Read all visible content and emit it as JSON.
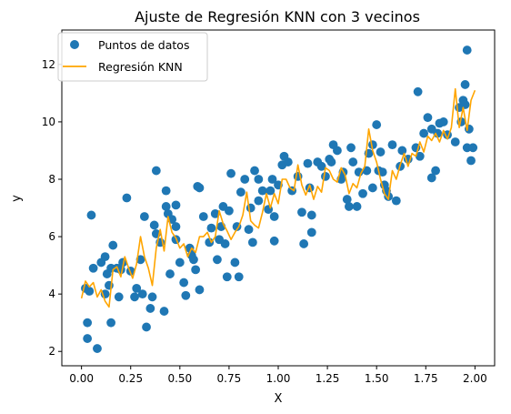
{
  "chart_data": {
    "type": "scatter",
    "title": "Ajuste de Regresión KNN con 3 vecinos",
    "xlabel": "X",
    "ylabel": "y",
    "xlim": [
      -0.1,
      2.1
    ],
    "ylim": [
      1.5,
      13.2
    ],
    "xticks": [
      "0.00",
      "0.25",
      "0.50",
      "0.75",
      "1.00",
      "1.25",
      "1.50",
      "1.75",
      "2.00"
    ],
    "yticks": [
      "2",
      "4",
      "6",
      "8",
      "10",
      "12"
    ],
    "grid": false,
    "legend_position": "top-left",
    "colors": {
      "points": "#1f77b4",
      "line": "#ffa500"
    },
    "series": [
      {
        "name": "Puntos de datos",
        "kind": "scatter",
        "points": [
          [
            0.02,
            4.2
          ],
          [
            0.03,
            3.0
          ],
          [
            0.03,
            2.45
          ],
          [
            0.04,
            4.1
          ],
          [
            0.05,
            6.75
          ],
          [
            0.06,
            4.9
          ],
          [
            0.08,
            2.1
          ],
          [
            0.1,
            5.1
          ],
          [
            0.12,
            4.0
          ],
          [
            0.12,
            5.3
          ],
          [
            0.13,
            4.7
          ],
          [
            0.14,
            4.3
          ],
          [
            0.15,
            4.9
          ],
          [
            0.15,
            3.0
          ],
          [
            0.16,
            5.7
          ],
          [
            0.18,
            4.9
          ],
          [
            0.19,
            3.9
          ],
          [
            0.2,
            4.85
          ],
          [
            0.21,
            5.1
          ],
          [
            0.23,
            7.35
          ],
          [
            0.25,
            4.8
          ],
          [
            0.27,
            3.9
          ],
          [
            0.28,
            4.2
          ],
          [
            0.3,
            5.2
          ],
          [
            0.31,
            4.0
          ],
          [
            0.32,
            6.7
          ],
          [
            0.33,
            2.85
          ],
          [
            0.35,
            3.5
          ],
          [
            0.36,
            3.9
          ],
          [
            0.37,
            6.4
          ],
          [
            0.38,
            8.3
          ],
          [
            0.38,
            6.1
          ],
          [
            0.4,
            5.8
          ],
          [
            0.42,
            3.4
          ],
          [
            0.43,
            7.6
          ],
          [
            0.43,
            7.05
          ],
          [
            0.44,
            6.8
          ],
          [
            0.45,
            4.7
          ],
          [
            0.46,
            6.6
          ],
          [
            0.48,
            6.35
          ],
          [
            0.48,
            7.1
          ],
          [
            0.48,
            5.9
          ],
          [
            0.5,
            5.1
          ],
          [
            0.52,
            4.4
          ],
          [
            0.53,
            3.95
          ],
          [
            0.55,
            5.6
          ],
          [
            0.56,
            5.35
          ],
          [
            0.57,
            5.2
          ],
          [
            0.58,
            4.85
          ],
          [
            0.59,
            7.75
          ],
          [
            0.6,
            7.7
          ],
          [
            0.6,
            4.15
          ],
          [
            0.62,
            6.7
          ],
          [
            0.65,
            5.8
          ],
          [
            0.66,
            6.3
          ],
          [
            0.68,
            6.8
          ],
          [
            0.69,
            5.2
          ],
          [
            0.7,
            5.9
          ],
          [
            0.71,
            6.35
          ],
          [
            0.72,
            7.05
          ],
          [
            0.73,
            5.75
          ],
          [
            0.74,
            4.6
          ],
          [
            0.75,
            6.9
          ],
          [
            0.76,
            8.2
          ],
          [
            0.78,
            5.1
          ],
          [
            0.79,
            6.35
          ],
          [
            0.8,
            4.6
          ],
          [
            0.81,
            7.55
          ],
          [
            0.83,
            8.0
          ],
          [
            0.85,
            6.25
          ],
          [
            0.86,
            7.0
          ],
          [
            0.87,
            5.8
          ],
          [
            0.88,
            8.3
          ],
          [
            0.9,
            7.25
          ],
          [
            0.9,
            8.0
          ],
          [
            0.92,
            7.6
          ],
          [
            0.95,
            6.95
          ],
          [
            0.96,
            7.6
          ],
          [
            0.97,
            8.0
          ],
          [
            0.98,
            6.7
          ],
          [
            0.98,
            5.85
          ],
          [
            1.0,
            7.8
          ],
          [
            1.02,
            8.5
          ],
          [
            1.03,
            8.8
          ],
          [
            1.05,
            8.6
          ],
          [
            1.07,
            7.6
          ],
          [
            1.1,
            8.1
          ],
          [
            1.12,
            6.85
          ],
          [
            1.13,
            5.75
          ],
          [
            1.15,
            8.55
          ],
          [
            1.16,
            7.7
          ],
          [
            1.17,
            6.75
          ],
          [
            1.17,
            6.15
          ],
          [
            1.2,
            8.6
          ],
          [
            1.22,
            8.45
          ],
          [
            1.24,
            8.1
          ],
          [
            1.26,
            8.7
          ],
          [
            1.27,
            8.6
          ],
          [
            1.28,
            9.2
          ],
          [
            1.3,
            9.0
          ],
          [
            1.32,
            8.0
          ],
          [
            1.33,
            8.25
          ],
          [
            1.35,
            7.3
          ],
          [
            1.36,
            7.05
          ],
          [
            1.37,
            9.1
          ],
          [
            1.38,
            8.6
          ],
          [
            1.4,
            7.05
          ],
          [
            1.41,
            8.25
          ],
          [
            1.43,
            7.5
          ],
          [
            1.45,
            8.3
          ],
          [
            1.46,
            8.9
          ],
          [
            1.48,
            9.2
          ],
          [
            1.48,
            7.7
          ],
          [
            1.5,
            9.9
          ],
          [
            1.51,
            8.3
          ],
          [
            1.52,
            8.95
          ],
          [
            1.53,
            8.25
          ],
          [
            1.54,
            7.8
          ],
          [
            1.55,
            7.6
          ],
          [
            1.56,
            7.4
          ],
          [
            1.58,
            9.2
          ],
          [
            1.6,
            7.25
          ],
          [
            1.62,
            8.45
          ],
          [
            1.63,
            9.0
          ],
          [
            1.66,
            8.7
          ],
          [
            1.7,
            9.1
          ],
          [
            1.71,
            11.05
          ],
          [
            1.72,
            8.8
          ],
          [
            1.74,
            9.6
          ],
          [
            1.76,
            10.15
          ],
          [
            1.78,
            8.05
          ],
          [
            1.78,
            9.75
          ],
          [
            1.8,
            8.3
          ],
          [
            1.81,
            9.6
          ],
          [
            1.82,
            9.95
          ],
          [
            1.84,
            10.0
          ],
          [
            1.86,
            9.55
          ],
          [
            1.9,
            9.3
          ],
          [
            1.92,
            10.5
          ],
          [
            1.93,
            10.0
          ],
          [
            1.94,
            10.75
          ],
          [
            1.95,
            11.3
          ],
          [
            1.95,
            10.6
          ],
          [
            1.96,
            12.5
          ],
          [
            1.96,
            9.1
          ],
          [
            1.97,
            9.75
          ],
          [
            1.98,
            8.65
          ],
          [
            1.99,
            9.1
          ]
        ]
      },
      {
        "name": "Regresión KNN",
        "kind": "line",
        "points": [
          [
            0.0,
            3.85
          ],
          [
            0.02,
            4.45
          ],
          [
            0.04,
            4.25
          ],
          [
            0.06,
            4.4
          ],
          [
            0.08,
            3.9
          ],
          [
            0.1,
            4.15
          ],
          [
            0.12,
            3.75
          ],
          [
            0.14,
            3.55
          ],
          [
            0.16,
            4.85
          ],
          [
            0.18,
            4.95
          ],
          [
            0.2,
            4.6
          ],
          [
            0.22,
            5.3
          ],
          [
            0.24,
            4.9
          ],
          [
            0.26,
            4.55
          ],
          [
            0.28,
            5.05
          ],
          [
            0.3,
            6.0
          ],
          [
            0.32,
            5.3
          ],
          [
            0.34,
            4.9
          ],
          [
            0.36,
            4.3
          ],
          [
            0.38,
            5.6
          ],
          [
            0.4,
            6.25
          ],
          [
            0.42,
            5.5
          ],
          [
            0.44,
            6.7
          ],
          [
            0.46,
            6.15
          ],
          [
            0.48,
            5.95
          ],
          [
            0.5,
            5.6
          ],
          [
            0.52,
            5.75
          ],
          [
            0.54,
            5.3
          ],
          [
            0.56,
            5.6
          ],
          [
            0.58,
            5.45
          ],
          [
            0.6,
            6.0
          ],
          [
            0.62,
            6.0
          ],
          [
            0.64,
            6.15
          ],
          [
            0.66,
            5.8
          ],
          [
            0.68,
            6.0
          ],
          [
            0.7,
            6.9
          ],
          [
            0.72,
            6.45
          ],
          [
            0.74,
            6.2
          ],
          [
            0.76,
            5.9
          ],
          [
            0.78,
            6.15
          ],
          [
            0.8,
            6.35
          ],
          [
            0.82,
            6.75
          ],
          [
            0.84,
            7.55
          ],
          [
            0.86,
            6.55
          ],
          [
            0.88,
            6.4
          ],
          [
            0.9,
            6.3
          ],
          [
            0.92,
            6.85
          ],
          [
            0.94,
            7.5
          ],
          [
            0.96,
            7.0
          ],
          [
            0.98,
            7.5
          ],
          [
            1.0,
            7.15
          ],
          [
            1.02,
            8.0
          ],
          [
            1.04,
            8.0
          ],
          [
            1.06,
            7.7
          ],
          [
            1.08,
            7.6
          ],
          [
            1.1,
            8.5
          ],
          [
            1.12,
            7.8
          ],
          [
            1.14,
            7.45
          ],
          [
            1.16,
            7.8
          ],
          [
            1.18,
            7.3
          ],
          [
            1.2,
            7.75
          ],
          [
            1.22,
            7.55
          ],
          [
            1.24,
            8.4
          ],
          [
            1.26,
            8.3
          ],
          [
            1.28,
            8.0
          ],
          [
            1.3,
            7.9
          ],
          [
            1.32,
            8.4
          ],
          [
            1.34,
            8.15
          ],
          [
            1.36,
            7.5
          ],
          [
            1.38,
            7.85
          ],
          [
            1.4,
            7.7
          ],
          [
            1.42,
            8.2
          ],
          [
            1.44,
            8.45
          ],
          [
            1.46,
            9.75
          ],
          [
            1.48,
            9.0
          ],
          [
            1.5,
            8.6
          ],
          [
            1.52,
            8.0
          ],
          [
            1.54,
            7.5
          ],
          [
            1.56,
            7.3
          ],
          [
            1.58,
            8.3
          ],
          [
            1.6,
            8.0
          ],
          [
            1.62,
            8.5
          ],
          [
            1.64,
            8.9
          ],
          [
            1.66,
            8.45
          ],
          [
            1.68,
            8.9
          ],
          [
            1.7,
            8.8
          ],
          [
            1.72,
            9.3
          ],
          [
            1.74,
            8.95
          ],
          [
            1.76,
            9.5
          ],
          [
            1.78,
            9.35
          ],
          [
            1.8,
            9.6
          ],
          [
            1.82,
            9.3
          ],
          [
            1.84,
            9.7
          ],
          [
            1.86,
            9.4
          ],
          [
            1.88,
            9.8
          ],
          [
            1.9,
            11.15
          ],
          [
            1.92,
            9.8
          ],
          [
            1.94,
            10.5
          ],
          [
            1.96,
            9.7
          ],
          [
            1.98,
            10.75
          ],
          [
            2.0,
            11.1
          ]
        ]
      }
    ]
  }
}
